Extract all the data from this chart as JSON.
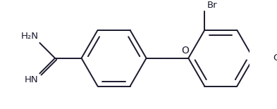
{
  "bg_color": "#ffffff",
  "line_color": "#1a1a2e",
  "line_width": 1.4,
  "font_size": 9.5,
  "r": 0.27,
  "xlim": [
    0.0,
    2.05
  ],
  "ylim": [
    0.08,
    0.92
  ]
}
